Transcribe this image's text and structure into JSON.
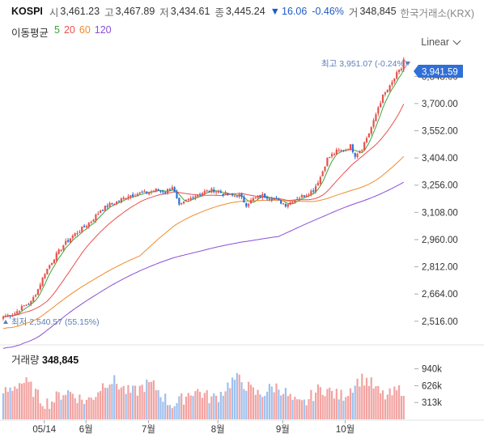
{
  "header": {
    "symbol": "KOSPI",
    "open_label": "시",
    "open": "3,461.23",
    "high_label": "고",
    "high": "3,467.89",
    "low_label": "저",
    "low": "3,434.61",
    "close_label": "종",
    "close": "3,445.24",
    "change_arrow": "▼",
    "change": "16.06",
    "change_pct": "-0.46%",
    "volume_label": "거",
    "volume": "348,845",
    "exchange": "한국거래소(KRX)"
  },
  "moving_average": {
    "label": "이동평균",
    "periods": [
      {
        "text": "5",
        "color": "#3aa63a"
      },
      {
        "text": "20",
        "color": "#e8514d"
      },
      {
        "text": "60",
        "color": "#f08c2e"
      },
      {
        "text": "120",
        "color": "#8a4fd6"
      }
    ]
  },
  "scale_mode": "Linear",
  "price_tag": "3,941.59",
  "high_marker": "최고 3,951.07 (-0.24%)",
  "low_marker": "최저 2,540.57 (55.15%)",
  "volume_panel": {
    "label": "거래량",
    "value": "348,845"
  },
  "colors": {
    "up": "#e8514d",
    "down": "#2f6fd6",
    "tag_bg": "#2f6fd6"
  },
  "chart_data": {
    "type": "candlestick",
    "y_axis": {
      "range": [
        2480,
        3990
      ],
      "ticks": [
        "3,848.00",
        "3,700.00",
        "3,552.00",
        "3,404.00",
        "3,256.00",
        "3,108.00",
        "2,960.00",
        "2,812.00",
        "2,664.00",
        "2,516.00"
      ]
    },
    "x_axis": {
      "labels": [
        "05/14",
        "6월",
        "7월",
        "8월",
        "9월",
        "10월"
      ]
    },
    "volume_axis": {
      "ticks": [
        "940k",
        "626k",
        "313k"
      ],
      "range_k": [
        0,
        1100
      ]
    },
    "close_keypoints": [
      [
        0,
        2540
      ],
      [
        5,
        2560
      ],
      [
        9,
        2600
      ],
      [
        12,
        2620
      ],
      [
        15,
        2690
      ],
      [
        18,
        2780
      ],
      [
        22,
        2860
      ],
      [
        26,
        2930
      ],
      [
        30,
        2980
      ],
      [
        34,
        3020
      ],
      [
        38,
        3060
      ],
      [
        42,
        3120
      ],
      [
        46,
        3150
      ],
      [
        50,
        3170
      ],
      [
        54,
        3200
      ],
      [
        58,
        3210
      ],
      [
        62,
        3215
      ],
      [
        66,
        3230
      ],
      [
        70,
        3220
      ],
      [
        73,
        3250
      ],
      [
        76,
        3140
      ],
      [
        79,
        3170
      ],
      [
        83,
        3200
      ],
      [
        87,
        3220
      ],
      [
        91,
        3230
      ],
      [
        95,
        3210
      ],
      [
        98,
        3200
      ],
      [
        102,
        3200
      ],
      [
        105,
        3150
      ],
      [
        108,
        3180
      ],
      [
        112,
        3200
      ],
      [
        116,
        3185
      ],
      [
        119,
        3170
      ],
      [
        122,
        3150
      ],
      [
        126,
        3180
      ],
      [
        130,
        3200
      ],
      [
        134,
        3230
      ],
      [
        137,
        3300
      ],
      [
        140,
        3400
      ],
      [
        144,
        3440
      ],
      [
        148,
        3450
      ],
      [
        150,
        3470
      ],
      [
        152,
        3420
      ],
      [
        155,
        3460
      ],
      [
        158,
        3540
      ],
      [
        160,
        3600
      ],
      [
        162,
        3680
      ],
      [
        164,
        3740
      ],
      [
        167,
        3790
      ],
      [
        170,
        3860
      ],
      [
        172,
        3890
      ],
      [
        173,
        3941
      ]
    ]
  }
}
